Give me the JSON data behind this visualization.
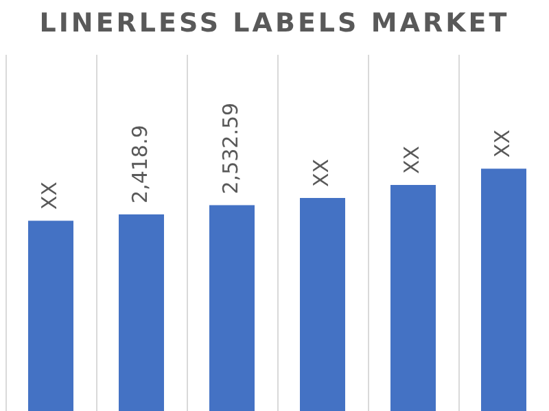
{
  "chart_data": {
    "type": "bar",
    "title": "LINERLESS LABELS MARKET",
    "categories": [
      null,
      null,
      null,
      null,
      null,
      null
    ],
    "values": [
      2340,
      2418.9,
      2532.59,
      2620,
      2780,
      2980
    ],
    "value_labels": [
      "XX",
      "2,418.9",
      "2,532.59",
      "XX",
      "XX",
      "XX"
    ],
    "color": "#4472c4",
    "grid": "x",
    "legend": false
  }
}
